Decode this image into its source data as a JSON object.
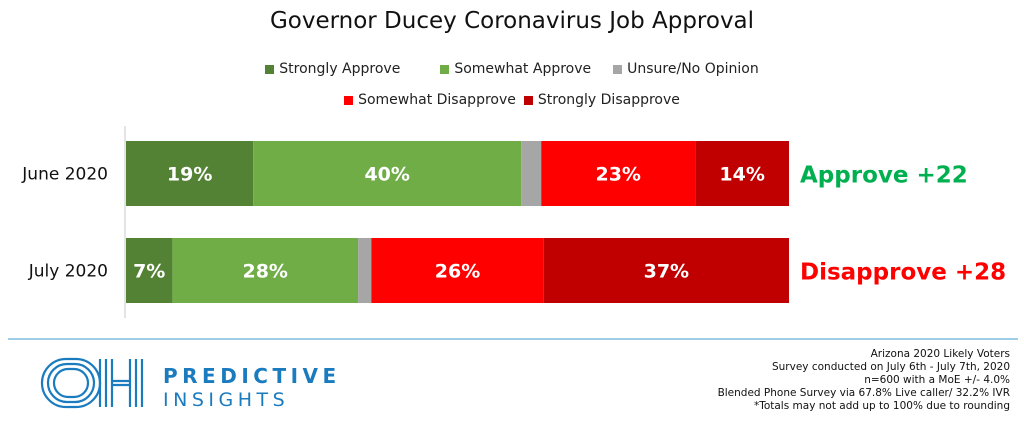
{
  "chart_data": {
    "type": "bar",
    "orientation": "horizontal",
    "stacked": true,
    "title": "Governor Ducey Coronavirus Job Approval",
    "categories": [
      "June 2020",
      "July 2020"
    ],
    "series": [
      {
        "name": "Strongly Approve",
        "color": "#548235",
        "values": [
          19,
          7
        ],
        "labels": [
          "19%",
          "7%"
        ]
      },
      {
        "name": "Somewhat Approve",
        "color": "#70ad47",
        "values": [
          40,
          28
        ],
        "labels": [
          "40%",
          "28%"
        ]
      },
      {
        "name": "Unsure/No Opinion",
        "color": "#a6a6a6",
        "values": [
          3,
          2
        ],
        "labels": [
          "",
          ""
        ]
      },
      {
        "name": "Somewhat Disapprove",
        "color": "#ff0000",
        "values": [
          23,
          26
        ],
        "labels": [
          "23%",
          "26%"
        ]
      },
      {
        "name": "Strongly Disapprove",
        "color": "#c00000",
        "values": [
          14,
          37
        ],
        "labels": [
          "14%",
          "37%"
        ]
      }
    ],
    "net_annotations": [
      {
        "text": "Approve +22",
        "color": "#00b050"
      },
      {
        "text": "Disapprove +28",
        "color": "#ff0000"
      }
    ],
    "legend_position": "top",
    "grid": false
  },
  "legend": {
    "row1": [
      {
        "label": "Strongly Approve",
        "color": "#548235"
      },
      {
        "label": "Somewhat Approve",
        "color": "#70ad47"
      },
      {
        "label": "Unsure/No Opinion",
        "color": "#a6a6a6"
      }
    ],
    "row2": [
      {
        "label": "Somewhat Disapprove",
        "color": "#ff0000"
      },
      {
        "label": "Strongly Disapprove",
        "color": "#c00000"
      }
    ]
  },
  "footer": {
    "logo_text": "OH",
    "brand_line1": "PREDICTIVE",
    "brand_line2": "INSIGHTS",
    "brand_color": "#1b7bbf",
    "notes": [
      "Arizona 2020 Likely Voters",
      "Survey conducted on July 6th - July 7th, 2020",
      "n=600 with a MoE +/- 4.0%",
      "Blended Phone Survey via 67.8% Live caller/ 32.2% IVR",
      "*Totals may not add up to 100% due to rounding"
    ]
  }
}
